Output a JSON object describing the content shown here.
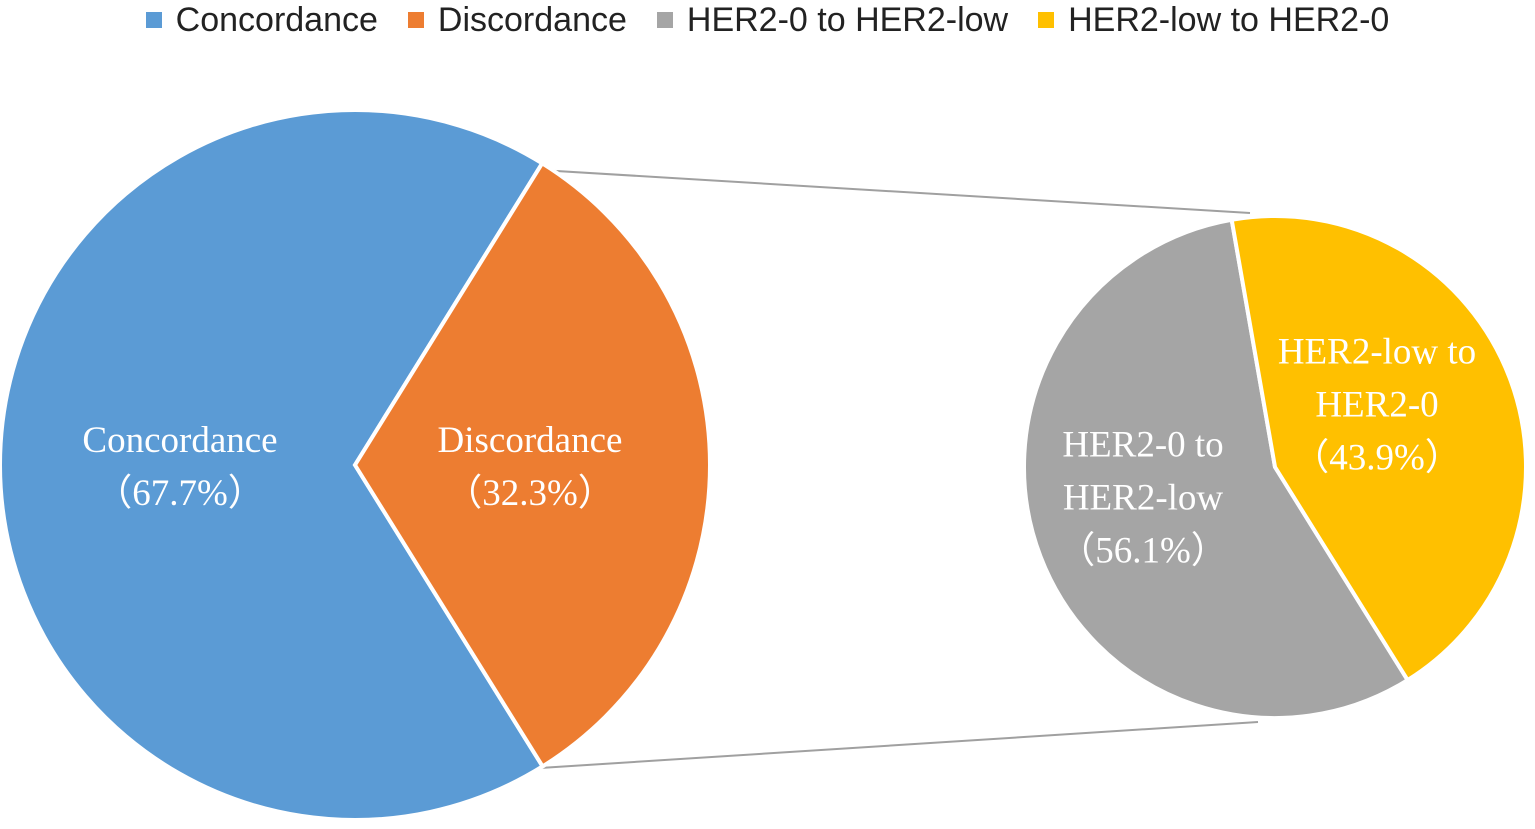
{
  "chart_data": [
    {
      "type": "pie",
      "categories": [
        "Concordance",
        "Discordance"
      ],
      "values": [
        67.7,
        32.3
      ],
      "value_labels": [
        "（67.7%）",
        "（32.3%）"
      ],
      "colors": [
        "#5b9bd5",
        "#ed7d31"
      ]
    },
    {
      "type": "pie",
      "categories": [
        "HER2-0 to HER2-low",
        "HER2-low to HER2-0"
      ],
      "values": [
        56.1,
        43.9
      ],
      "value_labels": [
        "（56.1%）",
        "（43.9%）"
      ],
      "colors": [
        "#a5a5a5",
        "#ffc000"
      ]
    }
  ]
}
